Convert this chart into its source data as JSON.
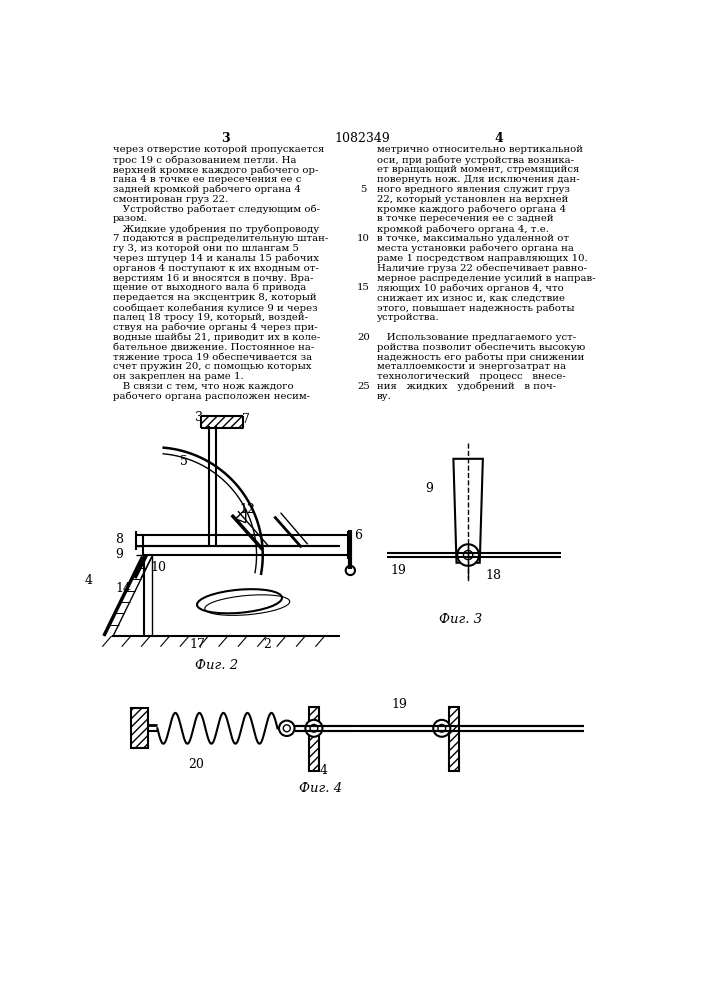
{
  "page_width": 7.07,
  "page_height": 10.0,
  "bg_color": "#ffffff",
  "header": {
    "left_num": "3",
    "center_patent": "1082349",
    "right_num": "4"
  },
  "col1_text": [
    "через отверстие которой пропускается",
    "трос 19 с образованием петли. На",
    "верхней кромке каждого рабочего ор-",
    "гана 4 в точке ее пересечения ее с",
    "задней кромкой рабочего органа 4",
    "смонтирован груз 22.",
    "   Устройство работает следующим об-",
    "разом.",
    "   Жидкие удобрения по трубопроводу",
    "7 подаются в распределительную штан-",
    "гу 3, из которой они по шлангам 5",
    "через штуцер 14 и каналы 15 рабочих",
    "органов 4 поступают к их входным от-",
    "верстиям 16 и вносятся в почву. Вра-",
    "щение от выходного вала 6 привода",
    "передается на эксцентрик 8, который",
    "сообщает колебания кулисе 9 и через",
    "палец 18 тросу 19, который, воздей-",
    "ствуя на рабочие органы 4 через при-",
    "водные шайбы 21, приводит их в коле-",
    "бательное движение. Постоянное на-",
    "тяжение троса 19 обеспечивается за",
    "счет пружин 20, с помощью которых",
    "он закреплен на раме 1.",
    "   В связи с тем, что нож каждого",
    "рабочего органа расположен несим-"
  ],
  "col2_text": [
    "метрично относительно вертикальной",
    "оси, при работе устройства возника-",
    "ет вращающий момент, стремящийся",
    "повернуть нож. Для исключения дан-",
    "ного вредного явления служит груз",
    "22, который установлен на верхней",
    "кромке каждого рабочего органа 4",
    "в точке пересечения ее с задней",
    "кромкой рабочего органа 4, т.е.",
    "в точке, максимально удаленной от",
    "места установки рабочего органа на",
    "раме 1 посредством направляющих 10.",
    "Наличие груза 22 обеспечивает равно-",
    "мерное распределение усилий в направ-",
    "ляющих 10 рабочих органов 4, что",
    "снижает их износ и, как следствие",
    "этого, повышает надежность работы",
    "устройства.",
    "",
    "   Использование предлагаемого уст-",
    "ройства позволит обеспечить высокую",
    "надежность его работы при снижении",
    "металлоемкости и энергозатрат на",
    "технологический   процесс   внесе-",
    "ния   жидких   удобрений   в поч-",
    "ву."
  ],
  "fig2_caption": "Фиг. 2",
  "fig3_caption": "Фиг. 3",
  "fig4_caption": "Фиг. 4"
}
